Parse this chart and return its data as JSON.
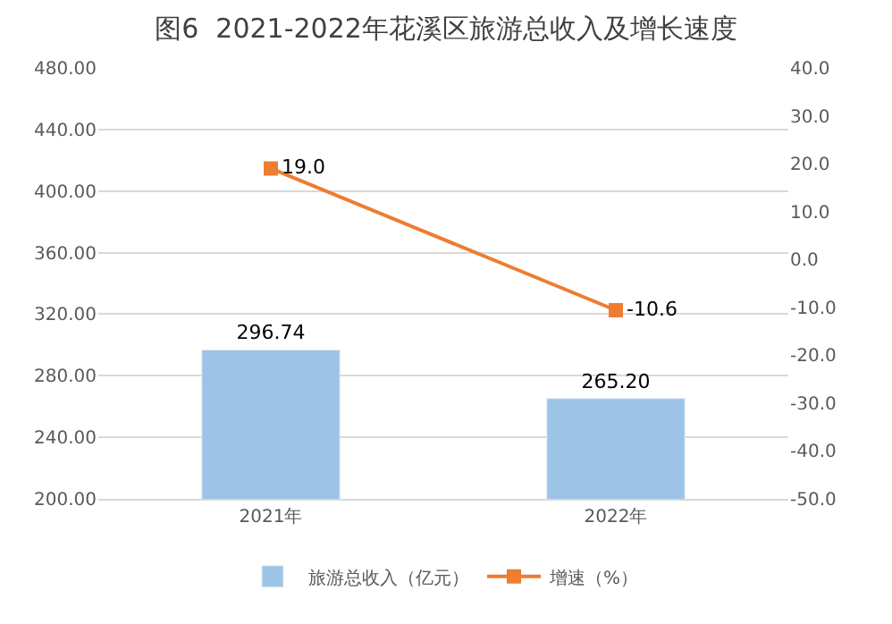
{
  "chart_data": {
    "type": "bar",
    "title": "图6  2021-2022年花溪区旅游总收入及增长速度",
    "categories": [
      "2021年",
      "2022年"
    ],
    "series": [
      {
        "name": "旅游总收入（亿元）",
        "color": "#9dc3e6",
        "values": [
          296.74,
          265.2
        ],
        "value_labels": [
          "296.74",
          "265.20"
        ]
      },
      {
        "name": "增速（%）",
        "type": "line",
        "axis": "y2",
        "color": "#ed7d31",
        "values": [
          19.0,
          -10.6
        ],
        "value_labels": [
          "19.0",
          "-10.6"
        ],
        "marker": "square"
      }
    ],
    "ylim": [
      200,
      480
    ],
    "yticks": [
      {
        "value": 200,
        "label": "200.00"
      },
      {
        "value": 240,
        "label": "240.00"
      },
      {
        "value": 280,
        "label": "280.00"
      },
      {
        "value": 320,
        "label": "320.00"
      },
      {
        "value": 360,
        "label": "360.00"
      },
      {
        "value": 400,
        "label": "400.00"
      },
      {
        "value": 440,
        "label": "440.00"
      },
      {
        "value": 480,
        "label": "480.00"
      }
    ],
    "y2lim": [
      -50,
      40
    ],
    "y2ticks": [
      {
        "value": -50,
        "label": "-50.0"
      },
      {
        "value": -40,
        "label": "-40.0"
      },
      {
        "value": -30,
        "label": "-30.0"
      },
      {
        "value": -20,
        "label": "-20.0"
      },
      {
        "value": -10,
        "label": "-10.0"
      },
      {
        "value": 0,
        "label": "0.0"
      },
      {
        "value": 10,
        "label": "10.0"
      },
      {
        "value": 20,
        "label": "20.0"
      },
      {
        "value": 30,
        "label": "30.0"
      },
      {
        "value": 40,
        "label": "40.0"
      }
    ],
    "grid": "y",
    "legend": "bottom"
  }
}
